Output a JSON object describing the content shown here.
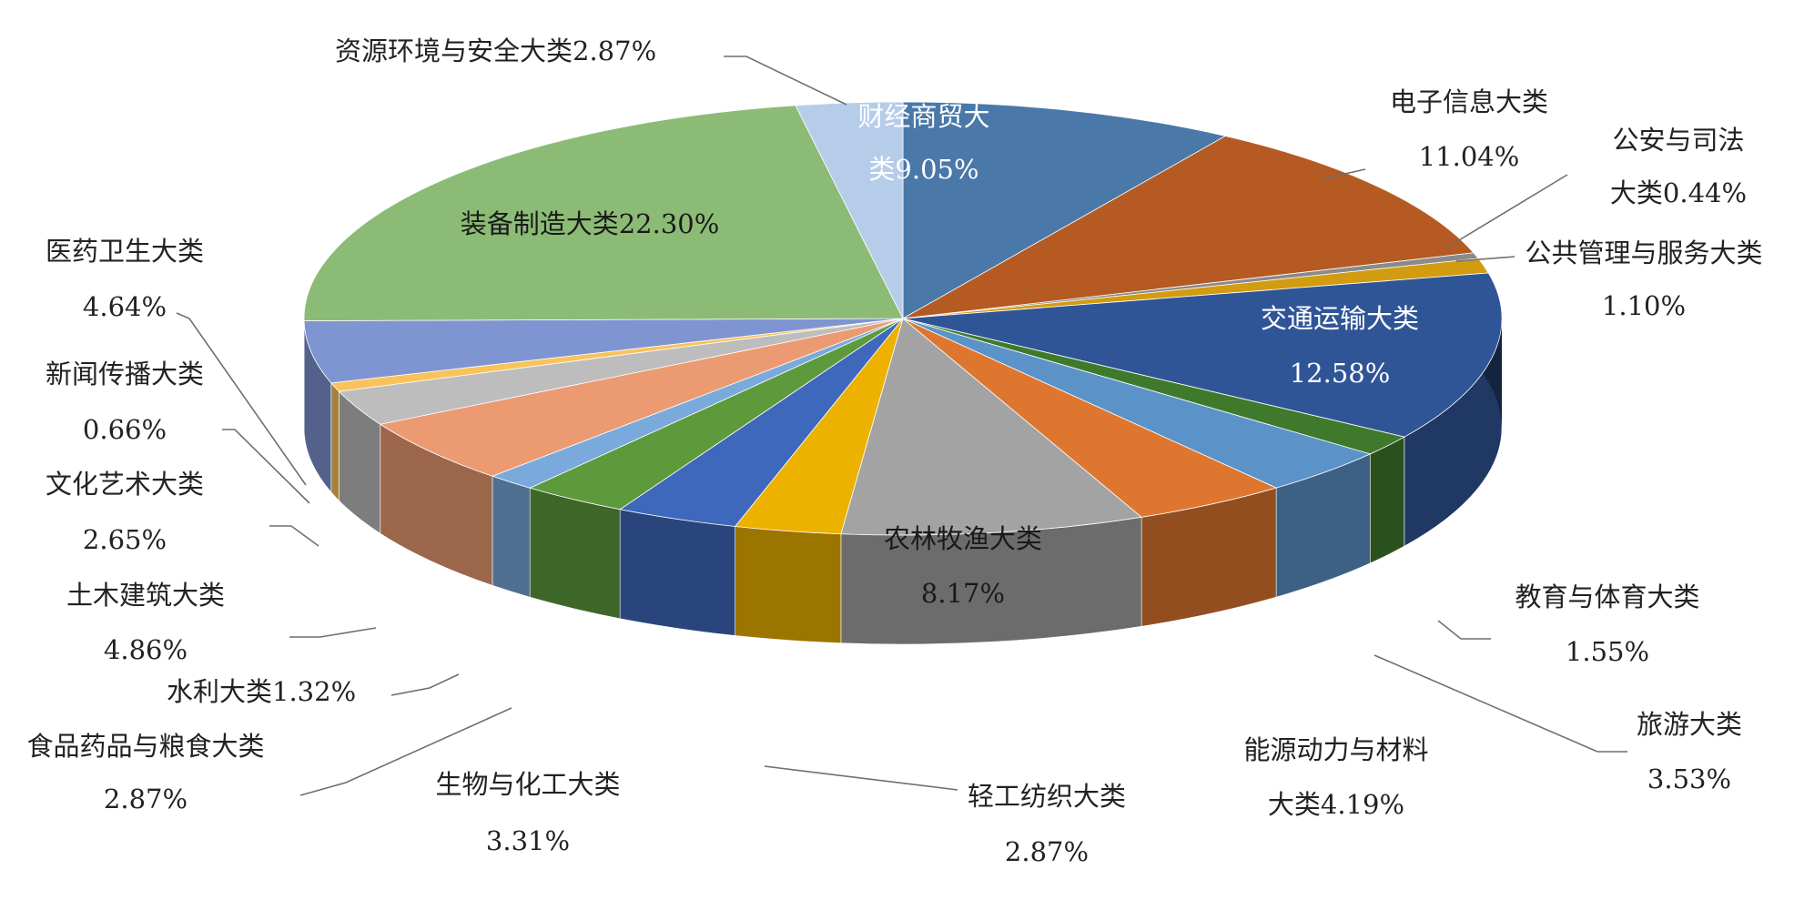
{
  "chart_data": {
    "type": "pie",
    "style": "3d",
    "title": "",
    "unit": "%",
    "slices": [
      {
        "name": "财经商贸大类",
        "value": 9.05,
        "label_lines": [
          "财经商贸大",
          "类9.05%"
        ],
        "color": "#4a78a8"
      },
      {
        "name": "电子信息大类",
        "value": 11.04,
        "label_lines": [
          "电子信息大类",
          "11.04%"
        ],
        "color": "#b55a22"
      },
      {
        "name": "公安与司法大类",
        "value": 0.44,
        "label_lines": [
          "公安与司法",
          "大类0.44%"
        ],
        "color": "#8a8a8a"
      },
      {
        "name": "公共管理与服务大类",
        "value": 1.1,
        "label_lines": [
          "公共管理与服务大类",
          "1.10%"
        ],
        "color": "#d29c10"
      },
      {
        "name": "交通运输大类",
        "value": 12.58,
        "label_lines": [
          "交通运输大类",
          "12.58%"
        ],
        "color": "#2f5597"
      },
      {
        "name": "教育与体育大类",
        "value": 1.55,
        "label_lines": [
          "教育与体育大类",
          "1.55%"
        ],
        "color": "#3f7a2c"
      },
      {
        "name": "旅游大类",
        "value": 3.53,
        "label_lines": [
          "旅游大类",
          "3.53%"
        ],
        "color": "#5b93c9"
      },
      {
        "name": "能源动力与材料大类",
        "value": 4.19,
        "label_lines": [
          "能源动力与材料",
          "大类4.19%"
        ],
        "color": "#de7630"
      },
      {
        "name": "农林牧渔大类",
        "value": 8.17,
        "label_lines": [
          "农林牧渔大类",
          "8.17%"
        ],
        "color": "#a3a3a3"
      },
      {
        "name": "轻工纺织大类",
        "value": 2.87,
        "label_lines": [
          "轻工纺织大类",
          "2.87%"
        ],
        "color": "#edb100"
      },
      {
        "name": "生物与化工大类",
        "value": 3.31,
        "label_lines": [
          "生物与化工大类",
          "3.31%"
        ],
        "color": "#3e68bb"
      },
      {
        "name": "食品药品与粮食大类",
        "value": 2.87,
        "label_lines": [
          "食品药品与粮食大类",
          "2.87%"
        ],
        "color": "#5d9a3c"
      },
      {
        "name": "水利大类",
        "value": 1.32,
        "label_lines": [
          "水利大类1.32%"
        ],
        "color": "#7aaadc"
      },
      {
        "name": "土木建筑大类",
        "value": 4.86,
        "label_lines": [
          "土木建筑大类",
          "4.86%"
        ],
        "color": "#ec9a72"
      },
      {
        "name": "文化艺术大类",
        "value": 2.65,
        "label_lines": [
          "文化艺术大类",
          "2.65%"
        ],
        "color": "#bdbdbd"
      },
      {
        "name": "新闻传播大类",
        "value": 0.66,
        "label_lines": [
          "新闻传播大类",
          "0.66%"
        ],
        "color": "#fac35a"
      },
      {
        "name": "医药卫生大类",
        "value": 4.64,
        "label_lines": [
          "医药卫生大类",
          "4.64%"
        ],
        "color": "#7f95d2"
      },
      {
        "name": "装备制造大类",
        "value": 22.3,
        "label_lines": [
          "装备制造大类22.30%"
        ],
        "color": "#8cbb76"
      },
      {
        "name": "资源环境与安全大类",
        "value": 2.87,
        "label_lines": [
          "资源环境与安全大类2.87%"
        ],
        "color": "#b6cdea"
      }
    ]
  }
}
